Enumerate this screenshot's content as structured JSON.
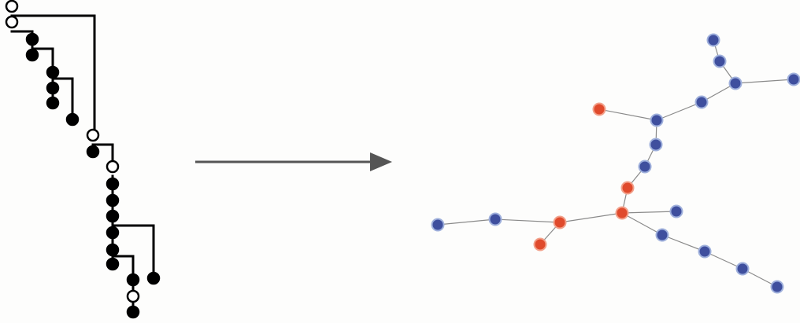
{
  "diagram": {
    "colors": {
      "tree_line": "#000000",
      "tree_node_filled": "#000000",
      "tree_node_open_fill": "#ffffff",
      "arrow": "#555555",
      "graph_edge": "#8a8a8a",
      "graph_node_blue": "#3f4f9e",
      "graph_node_blue_ring": "#9fb0dc",
      "graph_node_red": "#e04a2c",
      "graph_node_red_ring": "#f2a08a"
    },
    "tree": {
      "node_types": [
        "open",
        "open",
        "filled",
        "filled",
        "filled",
        "filled",
        "filled",
        "filled",
        "open",
        "filled",
        "open",
        "filled",
        "filled",
        "filled",
        "filled",
        "filled",
        "filled",
        "filled",
        "filled",
        "open",
        "filled",
        "filled"
      ]
    },
    "arrow": {
      "direction": "right"
    },
    "graph": {
      "nodes": [
        {
          "id": "b1",
          "color": "blue"
        },
        {
          "id": "b2",
          "color": "blue"
        },
        {
          "id": "b3",
          "color": "blue"
        },
        {
          "id": "b4",
          "color": "blue"
        },
        {
          "id": "b5",
          "color": "blue"
        },
        {
          "id": "r1",
          "color": "red"
        },
        {
          "id": "b6",
          "color": "blue"
        },
        {
          "id": "b7",
          "color": "blue"
        },
        {
          "id": "b8",
          "color": "blue"
        },
        {
          "id": "r2",
          "color": "red"
        },
        {
          "id": "r3",
          "color": "red"
        },
        {
          "id": "b9",
          "color": "blue"
        },
        {
          "id": "r4",
          "color": "red"
        },
        {
          "id": "b10",
          "color": "blue"
        },
        {
          "id": "b11",
          "color": "blue"
        },
        {
          "id": "r5",
          "color": "red"
        },
        {
          "id": "b12",
          "color": "blue"
        },
        {
          "id": "b13",
          "color": "blue"
        },
        {
          "id": "b14",
          "color": "blue"
        },
        {
          "id": "b15",
          "color": "blue"
        }
      ],
      "edges": [
        [
          "b1",
          "b2"
        ],
        [
          "b2",
          "b3"
        ],
        [
          "b3",
          "b4"
        ],
        [
          "b3",
          "b5"
        ],
        [
          "b5",
          "b6"
        ],
        [
          "r1",
          "b6"
        ],
        [
          "b6",
          "b7"
        ],
        [
          "b7",
          "b8"
        ],
        [
          "b8",
          "r2"
        ],
        [
          "r2",
          "r3"
        ],
        [
          "r3",
          "b9"
        ],
        [
          "r3",
          "r4"
        ],
        [
          "r4",
          "b10"
        ],
        [
          "b10",
          "b11"
        ],
        [
          "r4",
          "r5"
        ],
        [
          "r3",
          "b12"
        ],
        [
          "b12",
          "b13"
        ],
        [
          "b13",
          "b14"
        ],
        [
          "b14",
          "b15"
        ]
      ]
    }
  }
}
